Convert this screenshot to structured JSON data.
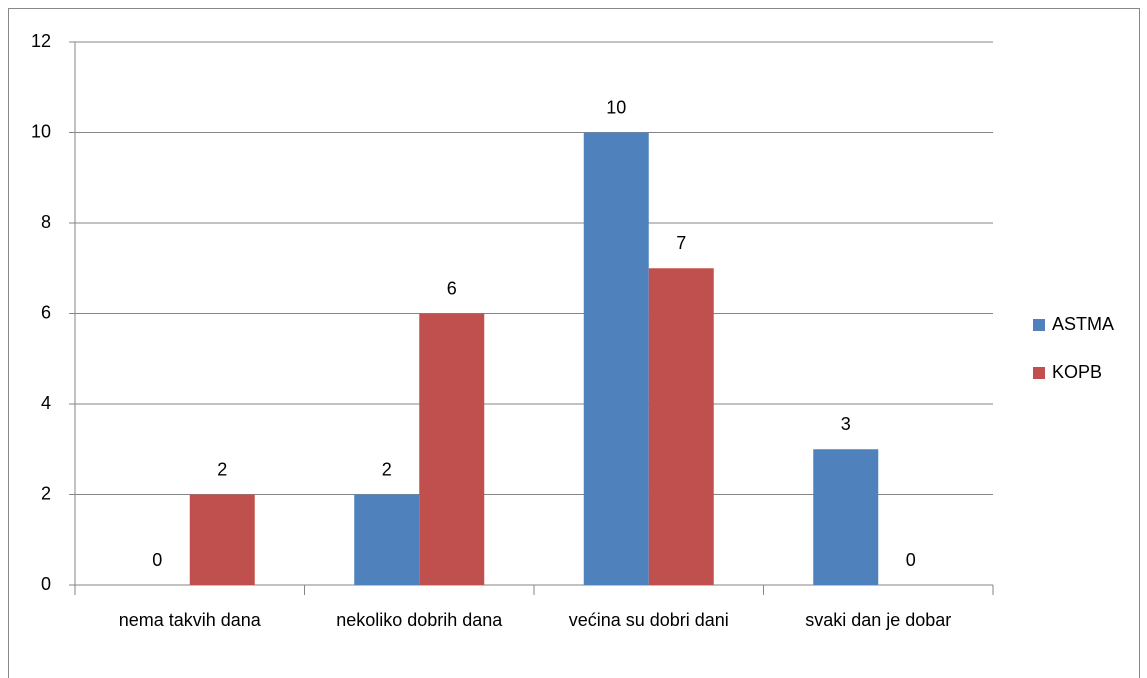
{
  "chart_data": {
    "type": "bar",
    "categories": [
      "nema takvih dana",
      "nekoliko dobrih dana",
      "većina su dobri dani",
      "svaki dan je dobar"
    ],
    "series": [
      {
        "name": "ASTMA",
        "color": "#4f81bd",
        "values": [
          0,
          2,
          10,
          3
        ]
      },
      {
        "name": "KOPB",
        "color": "#c0504d",
        "values": [
          2,
          6,
          7,
          0
        ]
      }
    ],
    "ylim": [
      0,
      12
    ],
    "yticks": [
      0,
      2,
      4,
      6,
      8,
      10,
      12
    ],
    "grid": true,
    "legend": "right",
    "data_labels": true
  }
}
